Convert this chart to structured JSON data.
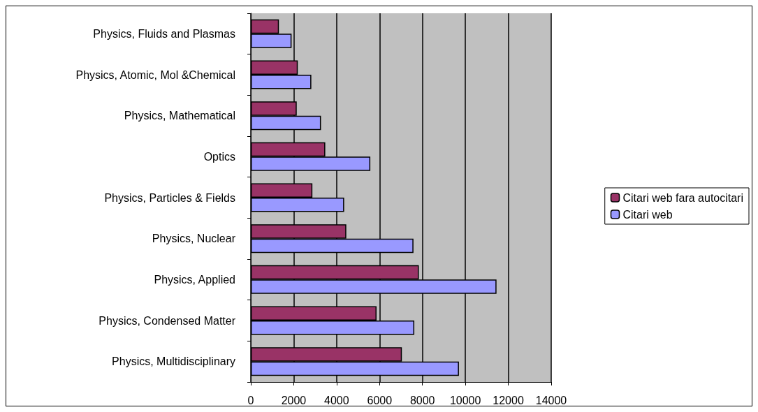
{
  "chart_data": {
    "type": "bar",
    "orientation": "horizontal",
    "categories": [
      "Physics, Fluids and Plasmas",
      "Physics, Atomic, Mol &Chemical",
      "Physics, Mathematical",
      "Optics",
      "Physics, Particles & Fields",
      "Physics, Nuclear",
      "Physics, Applied",
      "Physics, Condensed Matter",
      "Physics, Multidisciplinary"
    ],
    "series": [
      {
        "name": "Citari web fara autocitari",
        "color": "#993366",
        "values": [
          1310,
          2190,
          2140,
          3470,
          2870,
          4450,
          7830,
          5860,
          7040
        ]
      },
      {
        "name": "Citari web",
        "color": "#9999ff",
        "values": [
          1900,
          2820,
          3270,
          5570,
          4350,
          7580,
          11450,
          7620,
          9700
        ]
      }
    ],
    "xlim": [
      0,
      14000
    ],
    "xticks": [
      0,
      2000,
      4000,
      6000,
      8000,
      10000,
      12000,
      14000
    ],
    "grid": "x",
    "legend": "right"
  }
}
